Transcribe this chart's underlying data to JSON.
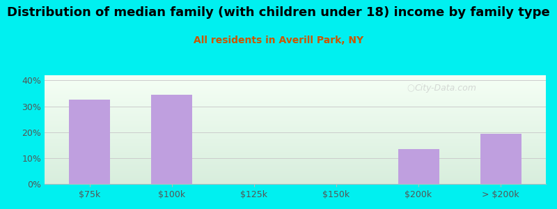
{
  "title": "Distribution of median family (with children under 18) income by family type",
  "subtitle": "All residents in Averill Park, NY",
  "categories": [
    "$75k",
    "$100k",
    "$125k",
    "$150k",
    "$200k",
    "> $200k"
  ],
  "values": [
    32.5,
    34.5,
    0,
    0,
    13.5,
    19.5
  ],
  "bar_color": "#bf9fdf",
  "background_color": "#00f0f0",
  "plot_bg_top": "#f5fff5",
  "plot_bg_bottom": "#d8eedd",
  "title_fontsize": 13,
  "subtitle_fontsize": 10,
  "subtitle_color": "#cc5500",
  "ylabel_ticks": [
    "0%",
    "10%",
    "20%",
    "30%",
    "40%"
  ],
  "yticks": [
    0,
    10,
    20,
    30,
    40
  ],
  "ylim": [
    0,
    42
  ],
  "watermark": "City-Data.com",
  "bar_width": 0.5
}
